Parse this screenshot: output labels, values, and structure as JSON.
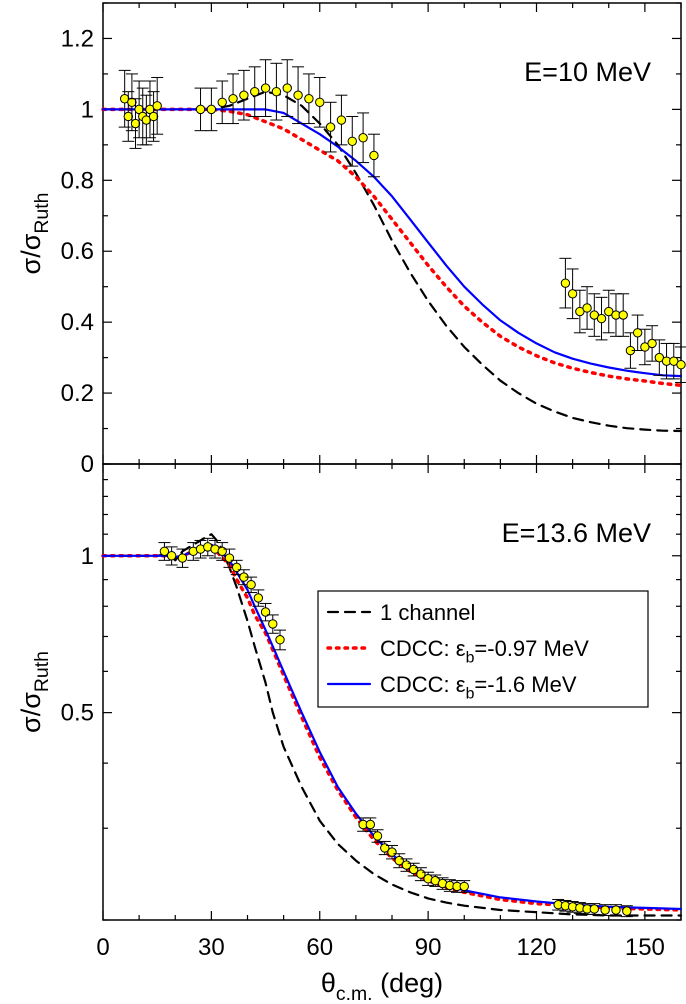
{
  "chart_data": [
    {
      "type": "scatter",
      "panel": "top",
      "annotation": "E=10 MeV",
      "ylabel_main": "σ/σ",
      "ylabel_sub": "Ruth",
      "xlim": [
        0,
        160
      ],
      "ylim": [
        0,
        1.3
      ],
      "x_ticks": [
        0,
        30,
        60,
        90,
        120,
        150
      ],
      "y_ticks": [
        0,
        0.2,
        0.4,
        0.6,
        0.8,
        1,
        1.2
      ],
      "y_tick_labels": [
        "0",
        "0.2",
        "0.4",
        "0.6",
        "0.8",
        "1",
        "1.2"
      ],
      "lines": [
        {
          "key": "one_channel",
          "x": [
            0,
            10,
            20,
            30,
            35,
            40,
            45,
            50,
            55,
            60,
            65,
            70,
            75,
            80,
            85,
            90,
            95,
            100,
            105,
            110,
            115,
            120,
            125,
            130,
            135,
            140,
            145,
            150,
            155,
            160
          ],
          "y": [
            1,
            1,
            1,
            1,
            1.01,
            1.03,
            1.05,
            1.04,
            1.01,
            0.96,
            0.9,
            0.82,
            0.73,
            0.63,
            0.54,
            0.46,
            0.39,
            0.33,
            0.28,
            0.235,
            0.2,
            0.17,
            0.148,
            0.13,
            0.118,
            0.108,
            0.101,
            0.097,
            0.094,
            0.093
          ]
        },
        {
          "key": "cdcc_097",
          "x": [
            0,
            10,
            20,
            30,
            35,
            40,
            45,
            50,
            55,
            60,
            65,
            70,
            75,
            80,
            85,
            90,
            95,
            100,
            105,
            110,
            115,
            120,
            125,
            130,
            135,
            140,
            145,
            150,
            155,
            160
          ],
          "y": [
            1,
            1,
            1,
            1,
            0.995,
            0.985,
            0.965,
            0.945,
            0.915,
            0.885,
            0.855,
            0.81,
            0.755,
            0.69,
            0.625,
            0.56,
            0.5,
            0.445,
            0.4,
            0.36,
            0.33,
            0.305,
            0.285,
            0.27,
            0.258,
            0.248,
            0.24,
            0.234,
            0.227,
            0.222
          ]
        },
        {
          "key": "cdcc_16",
          "x": [
            0,
            10,
            20,
            30,
            35,
            40,
            45,
            50,
            55,
            60,
            65,
            70,
            75,
            80,
            85,
            90,
            95,
            100,
            105,
            110,
            115,
            120,
            125,
            130,
            135,
            140,
            145,
            150,
            155,
            160
          ],
          "y": [
            1,
            1,
            1,
            1,
            1.0,
            1.0,
            1.0,
            0.99,
            0.96,
            0.93,
            0.895,
            0.855,
            0.81,
            0.755,
            0.69,
            0.625,
            0.56,
            0.5,
            0.45,
            0.405,
            0.37,
            0.34,
            0.315,
            0.297,
            0.283,
            0.272,
            0.263,
            0.256,
            0.25,
            0.248
          ]
        }
      ],
      "points": {
        "x": [
          6,
          7,
          8,
          9,
          10,
          11,
          12,
          13,
          14,
          15,
          27,
          30,
          33,
          36,
          39,
          42,
          45,
          48,
          51,
          54,
          57,
          60,
          63,
          66,
          69,
          72,
          75,
          128,
          130,
          132,
          134,
          136,
          138,
          140,
          142,
          144,
          146,
          148,
          150,
          152,
          154,
          156,
          158,
          160
        ],
        "y": [
          1.03,
          0.98,
          1.02,
          0.96,
          1.0,
          0.98,
          0.97,
          1.0,
          0.98,
          1.01,
          1.0,
          1.0,
          1.02,
          1.03,
          1.04,
          1.05,
          1.06,
          1.05,
          1.06,
          1.04,
          1.03,
          1.02,
          0.95,
          0.97,
          0.91,
          0.92,
          0.87,
          0.51,
          0.48,
          0.43,
          0.44,
          0.42,
          0.41,
          0.43,
          0.42,
          0.42,
          0.32,
          0.37,
          0.33,
          0.34,
          0.3,
          0.29,
          0.29,
          0.28
        ],
        "err": [
          0.08,
          0.07,
          0.08,
          0.07,
          0.08,
          0.08,
          0.07,
          0.08,
          0.07,
          0.08,
          0.06,
          0.06,
          0.06,
          0.07,
          0.07,
          0.07,
          0.08,
          0.08,
          0.08,
          0.08,
          0.07,
          0.07,
          0.07,
          0.07,
          0.07,
          0.07,
          0.06,
          0.07,
          0.07,
          0.06,
          0.06,
          0.06,
          0.06,
          0.06,
          0.06,
          0.06,
          0.05,
          0.05,
          0.05,
          0.05,
          0.05,
          0.05,
          0.05,
          0.05
        ]
      }
    },
    {
      "type": "scatter",
      "panel": "bottom",
      "annotation": "E=13.6 MeV",
      "ylabel_main": "σ/σ",
      "ylabel_sub": "Ruth",
      "xlabel_main": "θ",
      "xlabel_sub": "c.m.",
      "xlabel_unit": " (deg)",
      "xlim": [
        0,
        160
      ],
      "yscale": "log",
      "ylim": [
        0.2,
        1.5
      ],
      "x_ticks": [
        0,
        30,
        60,
        90,
        120,
        150
      ],
      "x_tick_labels": [
        "0",
        "30",
        "60",
        "90",
        "120",
        "150"
      ],
      "y_ticks": [
        1,
        0.5
      ],
      "y_tick_labels": [
        "1",
        "0.5"
      ],
      "lines": [
        {
          "key": "one_channel",
          "x": [
            0,
            10,
            15,
            18,
            20,
            22,
            25,
            28,
            30,
            32,
            35,
            37,
            40,
            42,
            45,
            47,
            50,
            55,
            60,
            65,
            70,
            75,
            80,
            85,
            90,
            95,
            100,
            110,
            120,
            130,
            140,
            150,
            160
          ],
          "y": [
            1,
            1,
            1,
            1.01,
            0.98,
            1.02,
            1.05,
            1.08,
            1.1,
            1.06,
            0.95,
            0.87,
            0.75,
            0.67,
            0.57,
            0.5,
            0.43,
            0.36,
            0.31,
            0.28,
            0.26,
            0.245,
            0.234,
            0.226,
            0.22,
            0.216,
            0.213,
            0.209,
            0.207,
            0.205,
            0.204,
            0.204,
            0.204
          ]
        },
        {
          "key": "cdcc_097",
          "x": [
            0,
            10,
            15,
            18,
            20,
            22,
            25,
            28,
            30,
            32,
            35,
            37,
            40,
            42,
            45,
            47,
            50,
            55,
            60,
            65,
            70,
            75,
            80,
            85,
            90,
            95,
            100,
            110,
            120,
            130,
            140,
            150,
            160
          ],
          "y": [
            1,
            1,
            1,
            1,
            0.99,
            1.0,
            1.02,
            1.03,
            1.04,
            1.01,
            0.96,
            0.9,
            0.83,
            0.77,
            0.71,
            0.66,
            0.59,
            0.49,
            0.41,
            0.355,
            0.315,
            0.285,
            0.263,
            0.248,
            0.238,
            0.231,
            0.226,
            0.219,
            0.215,
            0.213,
            0.211,
            0.21,
            0.209
          ]
        },
        {
          "key": "cdcc_16",
          "x": [
            0,
            10,
            15,
            18,
            20,
            22,
            25,
            28,
            30,
            32,
            35,
            37,
            40,
            42,
            45,
            47,
            50,
            55,
            60,
            65,
            70,
            75,
            80,
            85,
            90,
            95,
            100,
            110,
            120,
            130,
            140,
            150,
            160
          ],
          "y": [
            1,
            1,
            1,
            1,
            0.995,
            1.0,
            1.02,
            1.04,
            1.05,
            1.03,
            0.98,
            0.93,
            0.86,
            0.8,
            0.72,
            0.67,
            0.6,
            0.5,
            0.42,
            0.36,
            0.32,
            0.29,
            0.267,
            0.251,
            0.24,
            0.233,
            0.228,
            0.221,
            0.217,
            0.214,
            0.212,
            0.211,
            0.21
          ]
        }
      ],
      "points": {
        "x": [
          17,
          19,
          22,
          25,
          27,
          29,
          31,
          33,
          35,
          37,
          39,
          41,
          43,
          45,
          47,
          49,
          72,
          74,
          76,
          78,
          80,
          82,
          84,
          86,
          88,
          90,
          92,
          94,
          96,
          98,
          100,
          126,
          128,
          130,
          132,
          134,
          136,
          139,
          142,
          145
        ],
        "y": [
          1.02,
          1.0,
          0.99,
          1.02,
          1.03,
          1.04,
          1.03,
          1.02,
          0.99,
          0.95,
          0.91,
          0.88,
          0.83,
          0.78,
          0.74,
          0.69,
          0.305,
          0.305,
          0.29,
          0.275,
          0.27,
          0.26,
          0.255,
          0.25,
          0.245,
          0.24,
          0.238,
          0.235,
          0.233,
          0.232,
          0.232,
          0.214,
          0.213,
          0.212,
          0.211,
          0.21,
          0.21,
          0.209,
          0.209,
          0.208
        ],
        "err": [
          0.04,
          0.04,
          0.04,
          0.04,
          0.04,
          0.04,
          0.04,
          0.04,
          0.04,
          0.03,
          0.03,
          0.03,
          0.03,
          0.03,
          0.03,
          0.03,
          0.009,
          0.009,
          0.008,
          0.008,
          0.008,
          0.008,
          0.007,
          0.007,
          0.007,
          0.007,
          0.006,
          0.006,
          0.006,
          0.006,
          0.006,
          0.005,
          0.005,
          0.005,
          0.005,
          0.005,
          0.005,
          0.005,
          0.005,
          0.005
        ]
      },
      "legend": {
        "placement": "center-right",
        "entries": [
          {
            "key": "one_channel",
            "label_main": "1 channel",
            "label_sub": "",
            "label_tail": ""
          },
          {
            "key": "cdcc_097",
            "label_main": "CDCC: ε",
            "label_sub": "b",
            "label_tail": "=-0.97 MeV"
          },
          {
            "key": "cdcc_16",
            "label_main": "CDCC: ε",
            "label_sub": "b",
            "label_tail": "=-1.6 MeV"
          }
        ]
      }
    }
  ],
  "styles": {
    "one_channel": {
      "color": "#000000",
      "dash": "10,7",
      "width": 2.2
    },
    "cdcc_097": {
      "color": "#ff0000",
      "dash": "2.5,6",
      "width": 3.5
    },
    "cdcc_16": {
      "color": "#0000ff",
      "dash": "",
      "width": 2.2
    },
    "point_fill": "#ffff00"
  }
}
